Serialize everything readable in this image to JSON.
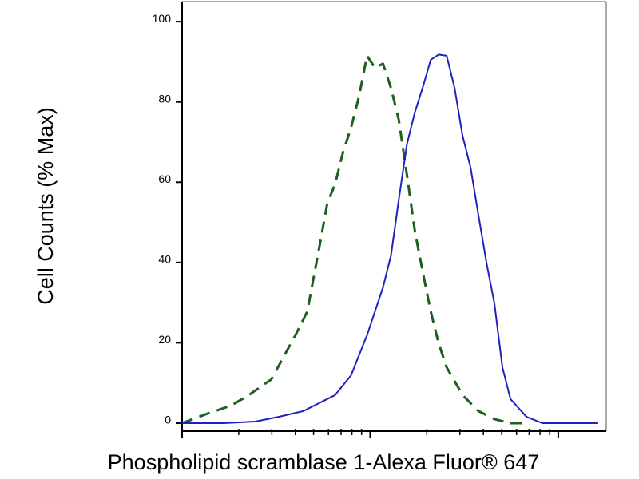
{
  "chart_data": {
    "type": "line",
    "xlabel": "Phospholipid scramblase 1-Alexa Fluor® 647",
    "ylabel": "Cell Counts (% Max)",
    "xscale": "log",
    "xlim": [
      1,
      180
    ],
    "xticks": [
      1,
      10,
      100
    ],
    "ylim": [
      -1,
      105
    ],
    "yticks": [
      0,
      20,
      40,
      60,
      80,
      100
    ],
    "series": [
      {
        "color": "#1e5e1e",
        "dashed": true,
        "x": [
          1,
          1.37,
          1.83,
          2.23,
          2.98,
          4.0,
          4.63,
          5.36,
          5.91,
          6.51,
          7.18,
          7.91,
          8.73,
          9.62,
          10.6,
          11.7,
          12.9,
          14.2,
          15.7,
          17.3,
          19.0,
          21.0,
          23.1,
          25.5,
          31.0,
          37.7,
          45.8,
          55.7,
          67.7
        ],
        "values": [
          0,
          2.4,
          4.4,
          6.8,
          10.9,
          21.9,
          27.8,
          43.7,
          54.7,
          59.6,
          67.6,
          73.6,
          81.5,
          91.5,
          88.5,
          89.5,
          83.5,
          75.5,
          61.6,
          47.7,
          37.8,
          27.8,
          19.9,
          13.9,
          7.0,
          3.0,
          1.0,
          0,
          0
        ]
      },
      {
        "color": "#2020c0",
        "dashed": false,
        "x": [
          1,
          1.66,
          2.45,
          3.29,
          4.41,
          5.36,
          6.51,
          7.91,
          9.62,
          11.7,
          12.9,
          14.2,
          15.7,
          17.3,
          19.0,
          21.0,
          23.1,
          25.5,
          28.1,
          31.0,
          34.2,
          37.7,
          41.6,
          45.8,
          50.5,
          55.7,
          67.7,
          82.3,
          100,
          163
        ],
        "values": [
          0,
          0,
          0.4,
          1.6,
          3.0,
          5.0,
          7.0,
          11.9,
          21.9,
          33.8,
          41.7,
          55.7,
          69.6,
          77.5,
          83.5,
          90.5,
          91.8,
          91.5,
          83.5,
          71.6,
          63.6,
          51.7,
          39.8,
          29.8,
          13.9,
          6.0,
          1.6,
          0,
          0,
          0
        ]
      }
    ]
  }
}
